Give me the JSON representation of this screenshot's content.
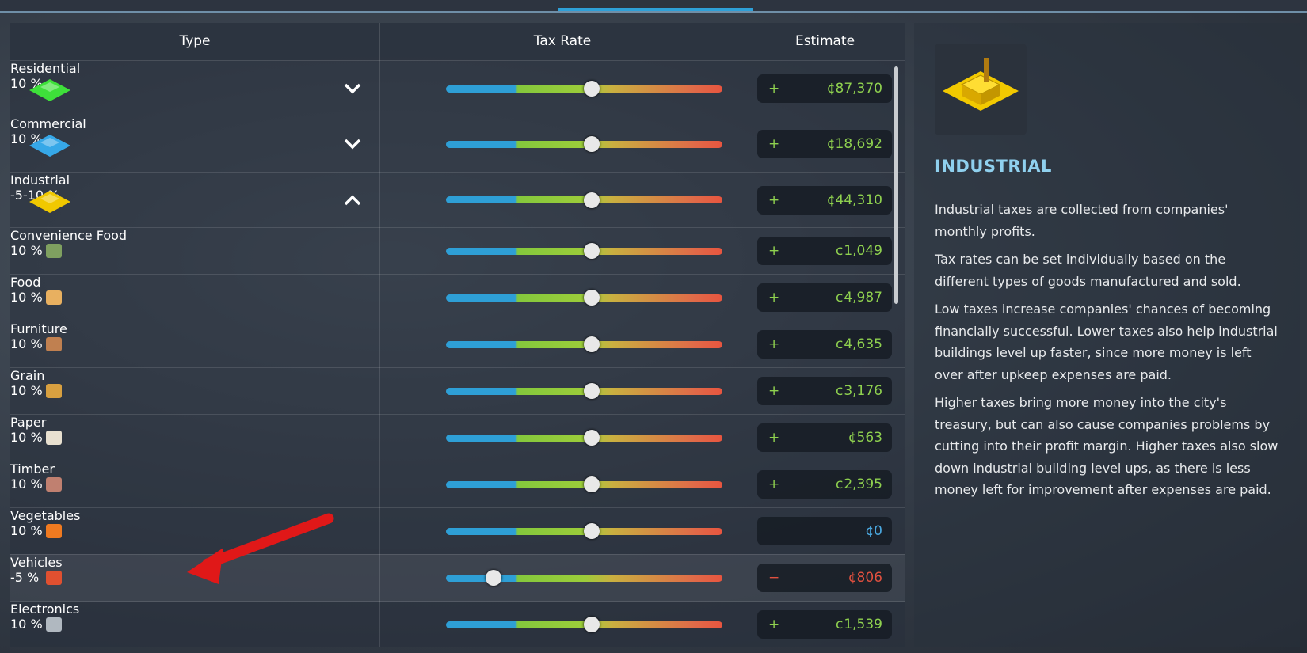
{
  "table": {
    "headers": [
      "Type",
      "Tax Rate",
      "Estimate"
    ],
    "rows": [
      {
        "type": "Residential",
        "tax_rate": "10 %",
        "estimate": {
          "sign": "+",
          "amount": "¢87,370",
          "color": "#8fd14f"
        }
      },
      {
        "type": "Commercial",
        "tax_rate": "10 %",
        "estimate": {
          "sign": "+",
          "amount": "¢18,692",
          "color": "#8fd14f"
        }
      },
      {
        "type": "Industrial",
        "tax_rate": "-5-10 %",
        "estimate": {
          "sign": "+",
          "amount": "¢44,310",
          "color": "#8fd14f"
        },
        "subtypes": [
          {
            "type": "Convenience Food",
            "tax_rate": "10 %",
            "estimate": {
              "sign": "+",
              "amount": "¢1,049",
              "color": "#8fd14f"
            }
          },
          {
            "type": "Food",
            "tax_rate": "10 %",
            "estimate": {
              "sign": "+",
              "amount": "¢4,987",
              "color": "#8fd14f"
            }
          },
          {
            "type": "Furniture",
            "tax_rate": "10 %",
            "estimate": {
              "sign": "+",
              "amount": "¢4,635",
              "color": "#8fd14f"
            }
          },
          {
            "type": "Grain",
            "tax_rate": "10 %",
            "estimate": {
              "sign": "+",
              "amount": "¢3,176",
              "color": "#8fd14f"
            }
          },
          {
            "type": "Paper",
            "tax_rate": "10 %",
            "estimate": {
              "sign": "+",
              "amount": "¢563",
              "color": "#8fd14f"
            }
          },
          {
            "type": "Timber",
            "tax_rate": "10 %",
            "estimate": {
              "sign": "+",
              "amount": "¢2,395",
              "color": "#8fd14f"
            }
          },
          {
            "type": "Vegetables",
            "tax_rate": "10 %",
            "estimate": {
              "amount": "¢0",
              "color": "#4aa8e0"
            }
          },
          {
            "type": "Vehicles",
            "tax_rate": "-5 %",
            "estimate": {
              "sign": "−",
              "amount": "¢806",
              "color": "#e0503f"
            }
          },
          {
            "type": "Electronics",
            "tax_rate": "10 %",
            "estimate": {
              "sign": "+",
              "amount": "¢1,539",
              "color": "#8fd14f"
            }
          }
        ]
      }
    ]
  },
  "info_panel": {
    "title": "INDUSTRIAL",
    "paragraphs": [
      "Industrial taxes are collected from companies' monthly profits.",
      "Tax rates can be set individually based on the different types of goods manufactured and sold.",
      "Low taxes increase companies' chances of becoming financially successful. Lower taxes also help industrial buildings level up faster, since more money is left over after upkeep expenses are paid.",
      "Higher taxes bring more money into the city's treasury, but can also cause companies problems by cutting into their profit margin. Higher taxes also slow down industrial building level ups, as there is less money left for improvement after expenses are paid."
    ]
  }
}
